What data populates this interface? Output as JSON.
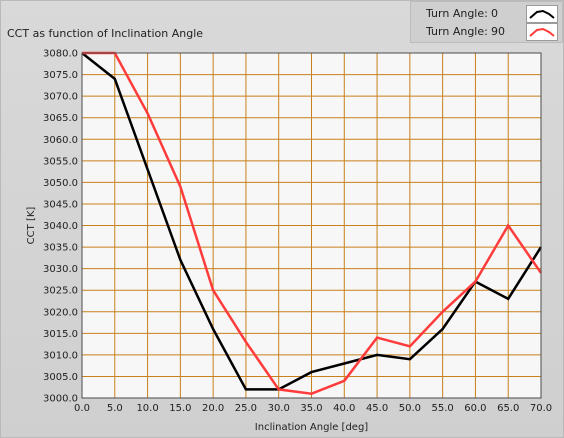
{
  "chart_data": {
    "type": "line",
    "title": "CCT as function of Inclination Angle",
    "xlabel": "Inclination Angle [deg]",
    "ylabel": "CCT [K]",
    "xlim": [
      0,
      70
    ],
    "ylim": [
      3000,
      3080
    ],
    "x_ticks": [
      "0.0",
      "5.0",
      "10.0",
      "15.0",
      "20.0",
      "25.0",
      "30.0",
      "35.0",
      "40.0",
      "45.0",
      "50.0",
      "55.0",
      "60.0",
      "65.0",
      "70.0"
    ],
    "y_ticks": [
      "3000.0",
      "3005.0",
      "3010.0",
      "3015.0",
      "3020.0",
      "3025.0",
      "3030.0",
      "3035.0",
      "3040.0",
      "3045.0",
      "3050.0",
      "3055.0",
      "3060.0",
      "3065.0",
      "3070.0",
      "3075.0",
      "3080.0"
    ],
    "grid": true,
    "legend_position": "top-right",
    "x": [
      0,
      5,
      10,
      15,
      20,
      25,
      30,
      35,
      40,
      45,
      50,
      55,
      60,
      65,
      70
    ],
    "series": [
      {
        "name": "Turn Angle:",
        "label_value": "0",
        "color": "#000000",
        "values": [
          3080,
          3074,
          3053,
          3032,
          3016,
          3002,
          3002,
          3006,
          3008,
          3010,
          3009,
          3016,
          3027,
          3023,
          3035
        ]
      },
      {
        "name": "Turn Angle:",
        "label_value": "90",
        "color": "#ff3c3c",
        "values": [
          3080,
          3080,
          3066,
          3049,
          3025,
          3013,
          3002,
          3001,
          3004,
          3014,
          3012,
          3020,
          3027,
          3040,
          3029
        ]
      }
    ],
    "colors": {
      "plot_background": "#f7f7f7",
      "grid": "#c8801a"
    }
  }
}
